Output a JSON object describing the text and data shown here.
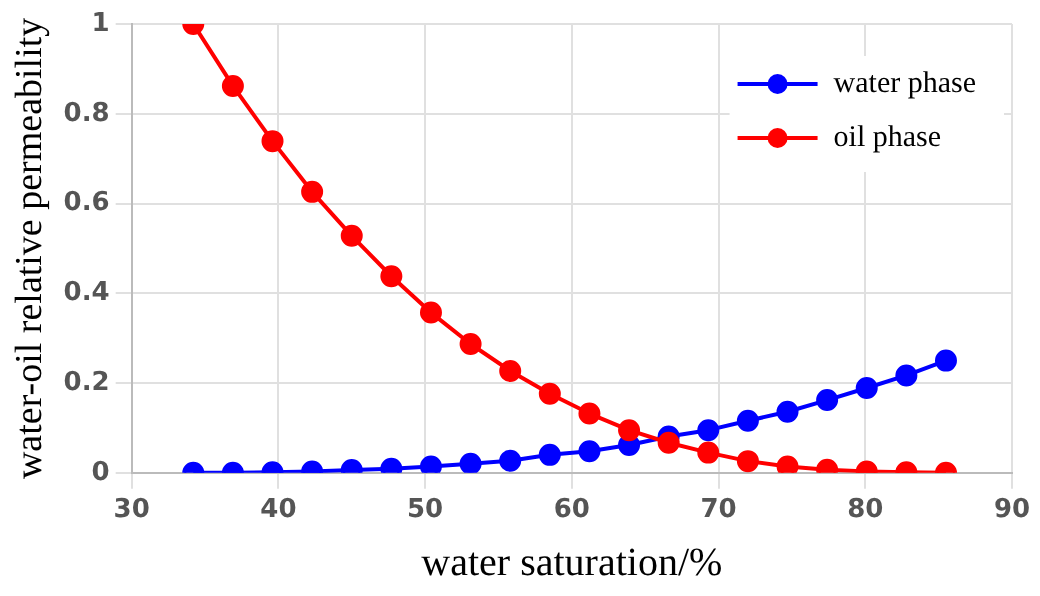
{
  "chart_data": {
    "type": "line",
    "xlabel": "water saturation/%",
    "ylabel": "water-oil relative permeability",
    "x": [
      34.2,
      36.9,
      39.6,
      42.3,
      45.0,
      47.7,
      50.4,
      53.1,
      55.8,
      58.5,
      61.2,
      63.9,
      66.6,
      69.3,
      72.0,
      74.7,
      77.4,
      80.1,
      82.8,
      85.5
    ],
    "series": [
      {
        "name": "water phase",
        "color": "#0000ff",
        "values": [
          0,
          0,
          0.001,
          0.003,
          0.006,
          0.009,
          0.014,
          0.02,
          0.027,
          0.04,
          0.048,
          0.062,
          0.081,
          0.095,
          0.116,
          0.136,
          0.162,
          0.189,
          0.217,
          0.25
        ]
      },
      {
        "name": "oil phase",
        "color": "#ff0000",
        "values": [
          1,
          0.862,
          0.739,
          0.626,
          0.528,
          0.438,
          0.357,
          0.287,
          0.227,
          0.176,
          0.132,
          0.095,
          0.067,
          0.045,
          0.026,
          0.014,
          0.007,
          0.003,
          0.001,
          0
        ]
      }
    ],
    "xlim": [
      30,
      90
    ],
    "xticks": [
      30,
      40,
      50,
      60,
      70,
      80,
      90
    ],
    "ylim": [
      0,
      1
    ],
    "yticks": [
      0,
      0.2,
      0.4,
      0.6,
      0.8,
      1
    ],
    "grid": true,
    "legend": "top right",
    "marker": "circle",
    "line_style": "solid"
  }
}
